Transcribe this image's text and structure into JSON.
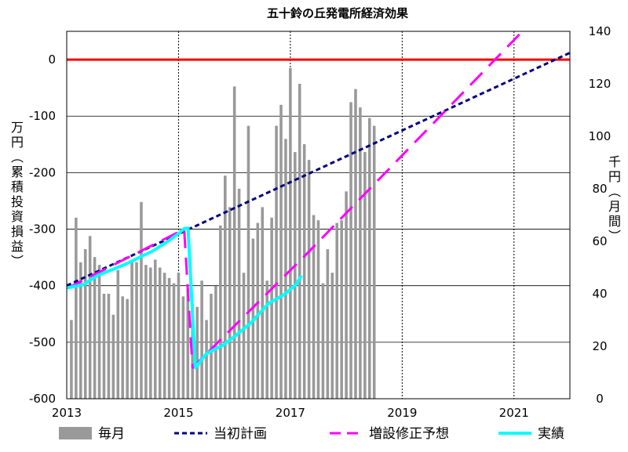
{
  "chart_data": {
    "type": "bar+line",
    "title": "五十鈴の丘発電所経済効果",
    "left_axis": {
      "label_chars": [
        "万",
        "円",
        "︵",
        "累",
        "積",
        "投",
        "資",
        "損",
        "益",
        "︶"
      ],
      "ylim": [
        -600,
        50
      ],
      "ticks": [
        "0",
        "-100",
        "-200",
        "-300",
        "-400",
        "-500",
        "-600"
      ],
      "tick_values": [
        0,
        -100,
        -200,
        -300,
        -400,
        -500,
        -600
      ]
    },
    "right_axis": {
      "label_chars": [
        "千",
        "円",
        "︵",
        "月",
        "間",
        "︶"
      ],
      "ylim": [
        0,
        140
      ],
      "ticks": [
        "0",
        "20",
        "40",
        "60",
        "80",
        "100",
        "120",
        "140"
      ],
      "tick_values": [
        0,
        20,
        40,
        60,
        80,
        100,
        120,
        140
      ]
    },
    "x_axis": {
      "xlim": [
        2013.0,
        2022.0
      ],
      "ticks": [
        "2013",
        "2015",
        "2017",
        "2019",
        "2021"
      ],
      "tick_values": [
        2013,
        2015,
        2017,
        2019,
        2021
      ]
    },
    "grid": true,
    "zero_line_color": "#ff0000",
    "legend_position": "bottom",
    "legend": [
      {
        "label": "毎月",
        "style": "bar",
        "color": "#999999"
      },
      {
        "label": "当初計画",
        "style": "dotted",
        "color": "#000080"
      },
      {
        "label": "増設修正予想",
        "style": "dashed",
        "color": "#ff00ff"
      },
      {
        "label": "実績",
        "style": "solid",
        "color": "#00ffff"
      }
    ],
    "series": [
      {
        "name": "毎月",
        "axis": "right",
        "type": "bar",
        "color": "#999999",
        "x_start": 2013.0833,
        "x_step": 0.08333,
        "values": [
          30,
          69,
          52,
          57,
          62,
          54,
          51,
          40,
          40,
          32,
          49,
          39,
          38,
          53,
          52,
          75,
          51,
          50,
          53,
          50,
          48,
          46,
          44,
          48,
          39,
          42,
          36,
          35,
          45,
          30,
          40,
          43,
          66,
          85,
          73,
          119,
          80,
          48,
          104,
          61,
          67,
          73,
          45,
          69,
          104,
          112,
          99,
          126,
          94,
          120,
          97,
          91,
          70,
          68,
          44,
          57,
          48,
          67,
          68,
          79,
          113,
          118,
          111,
          94,
          107,
          104
        ]
      },
      {
        "name": "当初計画",
        "axis": "left",
        "type": "line",
        "style": "dotted",
        "color": "#000080",
        "x": [
          2013.0,
          2022.0
        ],
        "y": [
          -400,
          12
        ]
      },
      {
        "name": "増設修正予想",
        "axis": "left",
        "type": "line",
        "style": "dashed",
        "color": "#ff00ff",
        "x": [
          2013.0,
          2015.1,
          2015.25,
          2017.25,
          2021.15
        ],
        "y": [
          -405,
          -300,
          -545,
          -348,
          50
        ]
      },
      {
        "name": "実績",
        "axis": "left",
        "type": "line",
        "style": "solid",
        "color": "#00ffff",
        "x": [
          2013.0,
          2013.3,
          2013.55,
          2013.8,
          2014.05,
          2014.3,
          2014.55,
          2014.8,
          2015.0,
          2015.1,
          2015.17,
          2015.3,
          2015.5,
          2015.8,
          2016.0,
          2016.3,
          2016.6,
          2016.9,
          2017.1,
          2017.2
        ],
        "y": [
          -404,
          -398,
          -382,
          -372,
          -362,
          -350,
          -338,
          -322,
          -308,
          -299,
          -298,
          -545,
          -520,
          -505,
          -490,
          -465,
          -432,
          -415,
          -398,
          -382
        ]
      }
    ]
  }
}
